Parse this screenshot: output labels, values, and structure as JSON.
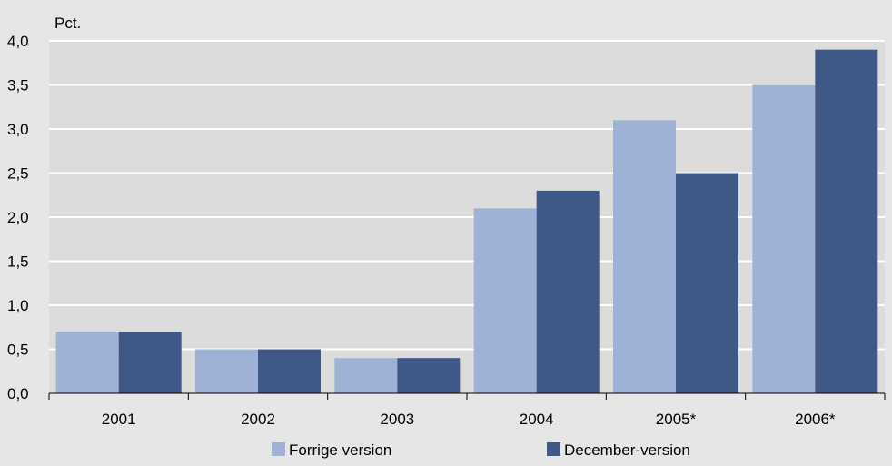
{
  "chart_data": {
    "type": "bar",
    "unit_label": "Pct.",
    "categories": [
      "2001",
      "2002",
      "2003",
      "2004",
      "2005*",
      "2006*"
    ],
    "series": [
      {
        "name": "Forrige version",
        "values": [
          0.7,
          0.5,
          0.4,
          2.1,
          3.1,
          3.5
        ],
        "color": "#9fb2d6"
      },
      {
        "name": "December-version",
        "values": [
          0.7,
          0.5,
          0.4,
          2.3,
          2.5,
          3.9
        ],
        "color": "#3f5887"
      }
    ],
    "y_ticks": [
      "0,0",
      "0,5",
      "1,0",
      "1,5",
      "2,0",
      "2,5",
      "3,0",
      "3,5",
      "4,0"
    ],
    "ylim": [
      0,
      4
    ],
    "grid": true,
    "legend_position": "bottom",
    "colors": {
      "background": "#e6e6e6",
      "plot_background": "#dcdcdc",
      "gridline": "#ffffff"
    }
  }
}
